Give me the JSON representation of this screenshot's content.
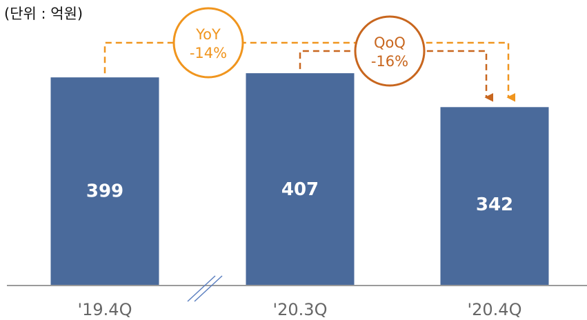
{
  "chart_data": {
    "type": "bar",
    "unit_label": "(단위 : 억원)",
    "categories": [
      "'19.4Q",
      "'20.3Q",
      "'20.4Q"
    ],
    "values": [
      399,
      407,
      342
    ],
    "bar_color": "#4a6a9b",
    "axis_break_between": [
      "'19.4Q",
      "'20.3Q"
    ],
    "annotations": [
      {
        "label": "YoY",
        "value": "-14%",
        "from": "'19.4Q",
        "to": "'20.4Q",
        "color": "#f0951e"
      },
      {
        "label": "QoQ",
        "value": "-16%",
        "from": "'20.3Q",
        "to": "'20.4Q",
        "color": "#c8661e"
      }
    ]
  }
}
